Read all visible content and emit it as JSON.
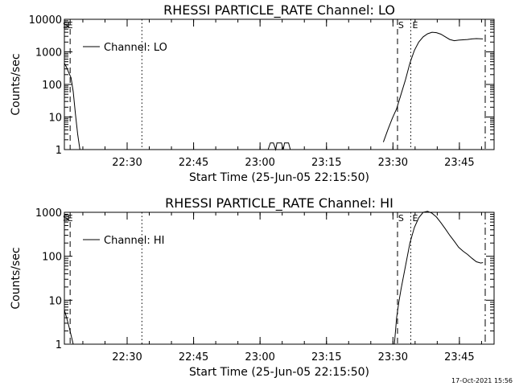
{
  "footer_timestamp": "17-Oct-2021 15:56",
  "chart_data": [
    {
      "type": "line",
      "title": "RHESSI PARTICLE_RATE Channel: LO",
      "xlabel": "Start Time (25-Jun-05 22:15:50)",
      "ylabel": "Counts/sec",
      "x_units": "minutes after 22:15:50",
      "xlim": [
        0,
        97
      ],
      "yscale": "log",
      "ylim": [
        1,
        10000
      ],
      "x_ticks": [
        {
          "x": 14.17,
          "label": "22:30"
        },
        {
          "x": 29.17,
          "label": "22:45"
        },
        {
          "x": 44.17,
          "label": "23:00"
        },
        {
          "x": 59.17,
          "label": "23:15"
        },
        {
          "x": 74.17,
          "label": "23:30"
        },
        {
          "x": 89.17,
          "label": "23:45"
        }
      ],
      "y_ticks": [
        {
          "v": 1,
          "label": "1"
        },
        {
          "v": 10,
          "label": "10"
        },
        {
          "v": 100,
          "label": "100"
        },
        {
          "v": 1000,
          "label": "1000"
        },
        {
          "v": 10000,
          "label": "10000"
        }
      ],
      "legend": {
        "label": "Channel: LO",
        "placement": "top-left"
      },
      "markers": [
        {
          "x": 0.3,
          "label": "S"
        },
        {
          "x": 1.3,
          "label": "E"
        },
        {
          "x": 76.0,
          "label": "S"
        },
        {
          "x": 79.2,
          "label": "E"
        }
      ],
      "vlines": [
        {
          "x": 1.3,
          "style": "dashed"
        },
        {
          "x": 17.5,
          "style": "dotted"
        },
        {
          "x": 75.2,
          "style": "dashed"
        },
        {
          "x": 78.2,
          "style": "dotted"
        },
        {
          "x": 95.0,
          "style": "dashdot"
        }
      ],
      "series": [
        {
          "name": "Channel: LO",
          "segments": [
            [
              [
                0,
                450
              ],
              [
                0.5,
                330
              ],
              [
                1.0,
                230
              ],
              [
                1.5,
                160
              ],
              [
                2.0,
                60
              ],
              [
                2.5,
                12
              ],
              [
                3.0,
                3
              ],
              [
                3.5,
                1
              ]
            ],
            [
              [
                46.0,
                1
              ],
              [
                46.5,
                1.6
              ],
              [
                47.2,
                1.6
              ],
              [
                47.7,
                1
              ],
              [
                48.0,
                1.6
              ],
              [
                49.0,
                1.6
              ],
              [
                49.4,
                1
              ],
              [
                49.7,
                1.6
              ],
              [
                50.6,
                1.6
              ],
              [
                51.0,
                1
              ]
            ],
            [
              [
                72.0,
                1.7
              ],
              [
                73.0,
                4
              ],
              [
                74.0,
                9
              ],
              [
                75.0,
                18
              ],
              [
                76.0,
                50
              ],
              [
                77.0,
                140
              ],
              [
                78.0,
                450
              ],
              [
                79.0,
                1100
              ],
              [
                80.0,
                2000
              ],
              [
                81.0,
                2900
              ],
              [
                82.0,
                3600
              ],
              [
                83.0,
                4000
              ],
              [
                84.0,
                3900
              ],
              [
                85.0,
                3500
              ],
              [
                86.0,
                2900
              ],
              [
                87.0,
                2400
              ],
              [
                88.0,
                2200
              ],
              [
                89.0,
                2300
              ],
              [
                90.0,
                2350
              ],
              [
                91.0,
                2400
              ],
              [
                92.0,
                2500
              ],
              [
                93.0,
                2550
              ],
              [
                94.5,
                2500
              ]
            ]
          ]
        }
      ]
    },
    {
      "type": "line",
      "title": "RHESSI PARTICLE_RATE Channel: HI",
      "xlabel": "Start Time (25-Jun-05 22:15:50)",
      "ylabel": "Counts/sec",
      "x_units": "minutes after 22:15:50",
      "xlim": [
        0,
        97
      ],
      "yscale": "log",
      "ylim": [
        1,
        1000
      ],
      "x_ticks": [
        {
          "x": 14.17,
          "label": "22:30"
        },
        {
          "x": 29.17,
          "label": "22:45"
        },
        {
          "x": 44.17,
          "label": "23:00"
        },
        {
          "x": 59.17,
          "label": "23:15"
        },
        {
          "x": 74.17,
          "label": "23:30"
        },
        {
          "x": 89.17,
          "label": "23:45"
        }
      ],
      "y_ticks": [
        {
          "v": 1,
          "label": "1"
        },
        {
          "v": 10,
          "label": "10"
        },
        {
          "v": 100,
          "label": "100"
        },
        {
          "v": 1000,
          "label": "1000"
        }
      ],
      "legend": {
        "label": "Channel: HI",
        "placement": "top-left"
      },
      "markers": [
        {
          "x": 0.3,
          "label": "S"
        },
        {
          "x": 1.3,
          "label": "E"
        },
        {
          "x": 76.0,
          "label": "S"
        },
        {
          "x": 79.2,
          "label": "E"
        }
      ],
      "vlines": [
        {
          "x": 1.3,
          "style": "dashed"
        },
        {
          "x": 17.5,
          "style": "dotted"
        },
        {
          "x": 75.2,
          "style": "dashed"
        },
        {
          "x": 78.2,
          "style": "dotted"
        },
        {
          "x": 95.0,
          "style": "dashdot"
        }
      ],
      "series": [
        {
          "name": "Channel: HI",
          "segments": [
            [
              [
                0,
                6
              ],
              [
                0.5,
                4
              ],
              [
                1.0,
                2.6
              ],
              [
                1.5,
                1.6
              ],
              [
                2.0,
                1
              ]
            ],
            [
              [
                74.5,
                1
              ],
              [
                75.0,
                4
              ],
              [
                75.5,
                9
              ],
              [
                76.0,
                18
              ],
              [
                77.0,
                60
              ],
              [
                78.0,
                200
              ],
              [
                79.0,
                450
              ],
              [
                80.0,
                750
              ],
              [
                81.0,
                1000
              ],
              [
                82.0,
                1050
              ],
              [
                83.0,
                950
              ],
              [
                84.0,
                780
              ],
              [
                85.0,
                580
              ],
              [
                86.0,
                420
              ],
              [
                87.0,
                300
              ],
              [
                88.0,
                220
              ],
              [
                89.0,
                160
              ],
              [
                90.0,
                130
              ],
              [
                91.0,
                110
              ],
              [
                92.0,
                90
              ],
              [
                93.0,
                75
              ],
              [
                94.0,
                70
              ],
              [
                94.5,
                72
              ]
            ]
          ]
        }
      ]
    }
  ]
}
